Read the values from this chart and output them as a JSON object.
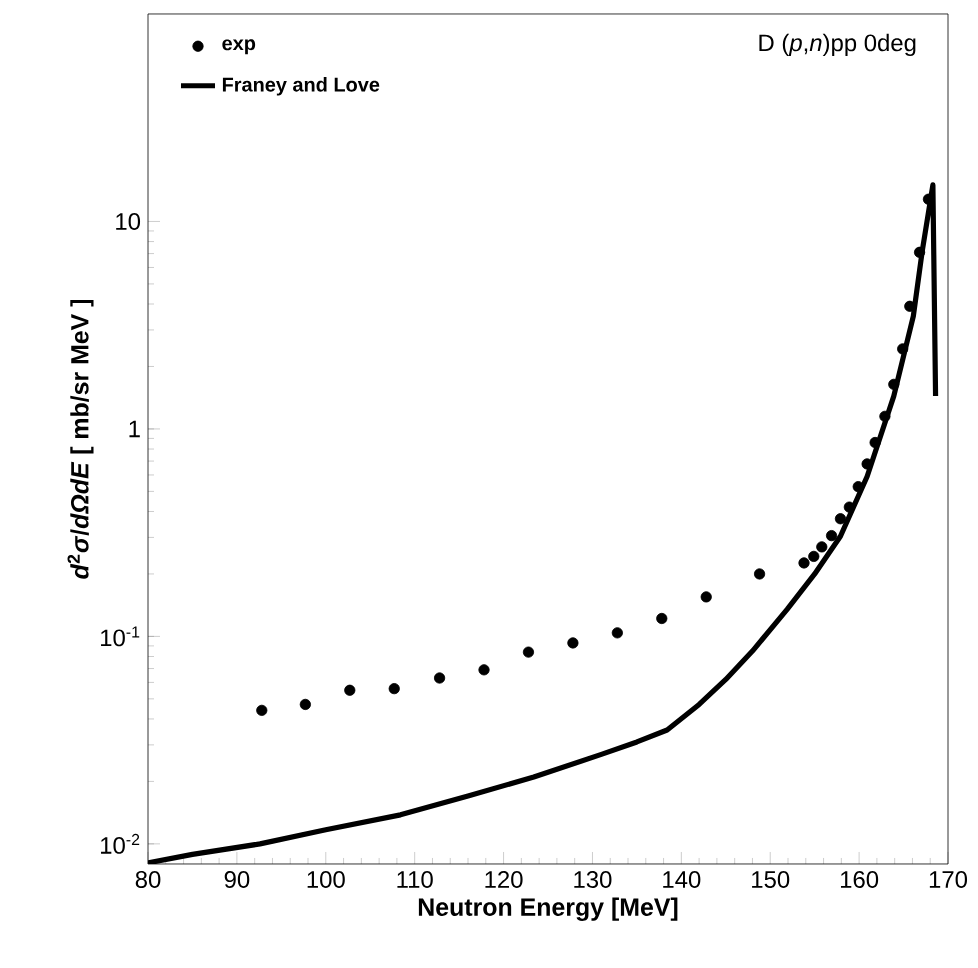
{
  "chart_data": {
    "type": "scatter",
    "xlabel": "Neutron Energy  [MeV]",
    "ylabel": "*d*$^{2}$*σ*/*dΩdE* [ mb/sr MeV ]",
    "annotations": [
      "D (*p*,*n*)pp  0deg"
    ],
    "log": "y",
    "legend": "top left",
    "marker": "circle",
    "line_style": "solid",
    "xlim": [
      80,
      170
    ],
    "xticks": [
      80,
      90,
      100,
      110,
      120,
      130,
      140,
      150,
      160,
      170
    ],
    "ylim": [
      0.008,
      100
    ],
    "yticks": [
      {
        "value": 0.01,
        "label": "10$^{-2}$"
      },
      {
        "value": 0.1,
        "label": "10$^{-1}$"
      },
      1,
      10
    ],
    "series": [
      {
        "name": "exp",
        "color": "#000000",
        "x": [
          92.8,
          97.7,
          102.7,
          107.7,
          112.8,
          117.8,
          122.8,
          127.8,
          132.8,
          137.8,
          142.8,
          148.8,
          153.8,
          154.9,
          155.8,
          156.9,
          157.9,
          158.9,
          159.9,
          160.9,
          161.8,
          162.9,
          163.9,
          164.9,
          165.7,
          166.8,
          167.8
        ],
        "values": [
          0.044,
          0.047,
          0.055,
          0.056,
          0.063,
          0.069,
          0.084,
          0.093,
          0.104,
          0.122,
          0.155,
          0.2,
          0.226,
          0.243,
          0.27,
          0.306,
          0.369,
          0.42,
          0.527,
          0.678,
          0.86,
          1.15,
          1.64,
          2.43,
          3.9,
          7.1,
          12.8
        ]
      },
      {
        "name": "Franey and Love",
        "type": "line",
        "marker": "none",
        "color": "#000000",
        "x": [
          80,
          85,
          92.6,
          100,
          108.4,
          116,
          123.4,
          131,
          135,
          138.4,
          142,
          145,
          148,
          151.9,
          155,
          157.9,
          160.9,
          163.9,
          166.1,
          167.1,
          168.3,
          168.6
        ],
        "values": [
          0.0081,
          0.0089,
          0.01,
          0.0117,
          0.0138,
          0.017,
          0.021,
          0.027,
          0.031,
          0.0354,
          0.047,
          0.062,
          0.085,
          0.135,
          0.2,
          0.304,
          0.59,
          1.44,
          3.5,
          7.2,
          15,
          1.44
        ]
      }
    ]
  }
}
